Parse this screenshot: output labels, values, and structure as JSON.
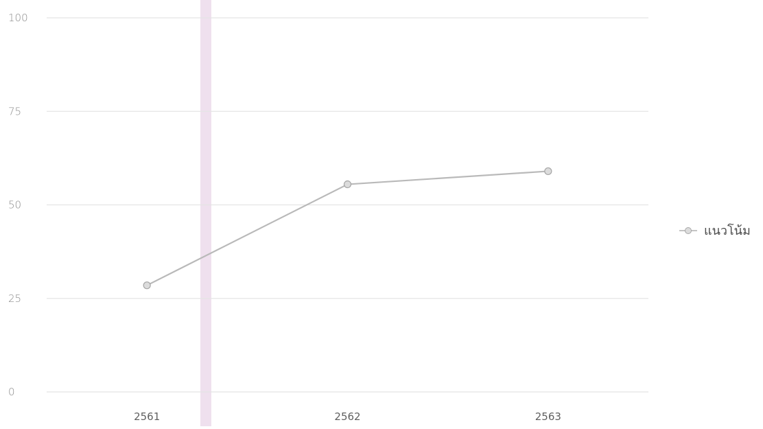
{
  "chart_data": {
    "type": "line",
    "categories": [
      "2561",
      "2562",
      "2563"
    ],
    "series": [
      {
        "name": "แนวโน้ม",
        "values": [
          28.5,
          55.5,
          59
        ]
      }
    ],
    "ylim": [
      0,
      100
    ],
    "yticks": [
      "0",
      "25",
      "50",
      "75",
      "100"
    ],
    "grid": true,
    "legend": "right",
    "colors": {
      "line": "#b9b9b9",
      "marker_fill": "#dcdcdc",
      "marker_stroke": "#a6a6a6",
      "grid": "#e4e4e4",
      "highlight_band": "#efe0ee"
    }
  }
}
